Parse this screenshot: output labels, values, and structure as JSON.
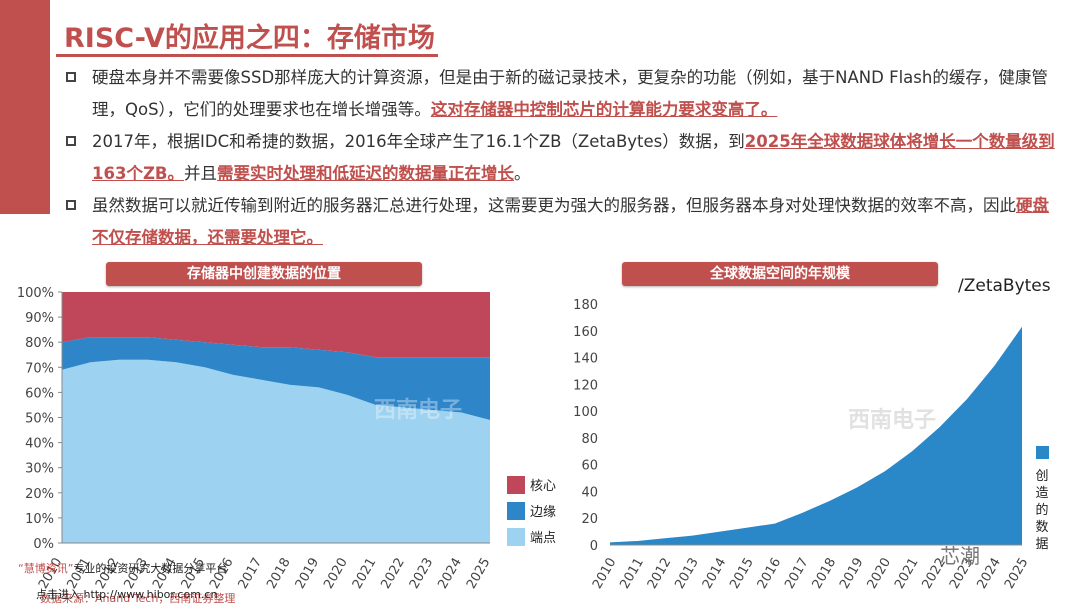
{
  "slide": {
    "title": "RISC-V的应用之四：存储市场",
    "bullets": [
      {
        "parts": [
          {
            "t": "硬盘本身并不需要像SSD那样庞大的计算资源，但是由于新的磁记录技术，更复杂的功能（例如，基于NAND Flash的缓存，健康管理，QoS），它们的处理要求也在增长增强等。",
            "hl": false
          },
          {
            "t": "这对存储器中控制芯片的计算能力要求变高了。",
            "hl": true
          }
        ]
      },
      {
        "parts": [
          {
            "t": "2017年，根据IDC和希捷的数据，2016年全球产生了16.1个ZB（ZetaBytes）数据，到",
            "hl": false
          },
          {
            "t": "2025年全球数据球体将增长一个数量级到163个ZB。",
            "hl": true
          },
          {
            "t": "并且",
            "hl": false
          },
          {
            "t": "需要实时处理和低延迟的数据量正在增长",
            "hl": true
          },
          {
            "t": "。",
            "hl": false
          }
        ]
      },
      {
        "parts": [
          {
            "t": "虽然数据可以就近传输到附近的服务器汇总进行处理，这需要更为强大的服务器，但服务器本身对处理快数据的效率不高，因此",
            "hl": false
          },
          {
            "t": "硬盘不仅存储数据，还需要处理它。",
            "hl": true
          }
        ]
      }
    ]
  },
  "colors": {
    "accent": "#c0504d",
    "core": "#c0475a",
    "edge": "#2e86c9",
    "endpoint": "#9dd3f0",
    "area": "#2a87c8"
  },
  "watermark": "西南电子",
  "footer": {
    "quote_prefix": "“慧博资讯”",
    "quote_text": "专业的投资研究大数据分享平台",
    "click": "点击进入",
    "url": "http://www.hibor.com.cn",
    "source": "数据来源：Anand Tech，西南证券整理"
  },
  "wechat_label": "芯潮",
  "chart_data": [
    {
      "type": "area",
      "title": "存储器中创建数据的位置",
      "stacked": true,
      "x": [
        "2010",
        "2011",
        "2012",
        "2013",
        "2014",
        "2015",
        "2016",
        "2017",
        "2018",
        "2019",
        "2020",
        "2021",
        "2022",
        "2023",
        "2024",
        "2025"
      ],
      "series": [
        {
          "name": "端点",
          "values": [
            69,
            72,
            73,
            73,
            72,
            70,
            67,
            65,
            63,
            62,
            59,
            55,
            54,
            53,
            52,
            49
          ]
        },
        {
          "name": "边缘",
          "values": [
            11,
            10,
            9,
            9,
            9,
            10,
            12,
            13,
            15,
            15,
            17,
            19,
            20,
            21,
            22,
            25
          ]
        },
        {
          "name": "核心",
          "values": [
            20,
            18,
            18,
            18,
            19,
            20,
            21,
            22,
            22,
            23,
            24,
            26,
            26,
            26,
            26,
            26
          ]
        }
      ],
      "ylim": [
        0,
        100
      ],
      "yticks": [
        "0%",
        "10%",
        "20%",
        "30%",
        "40%",
        "50%",
        "60%",
        "70%",
        "80%",
        "90%",
        "100%"
      ],
      "legend": "right",
      "grid": false
    },
    {
      "type": "area",
      "title": "全球数据空间的年规模",
      "unit": "/ZetaBytes",
      "x": [
        "2010",
        "2011",
        "2012",
        "2013",
        "2014",
        "2015",
        "2016",
        "2017",
        "2018",
        "2019",
        "2020",
        "2021",
        "2022",
        "2023",
        "2024",
        "2025"
      ],
      "series": [
        {
          "name": "创造的数据",
          "values": [
            2,
            3,
            5,
            7,
            10,
            13,
            16,
            24,
            33,
            43,
            55,
            70,
            88,
            109,
            134,
            163
          ]
        }
      ],
      "ylim": [
        0,
        180
      ],
      "yticks": [
        "0",
        "20",
        "40",
        "60",
        "80",
        "100",
        "120",
        "140",
        "160",
        "180"
      ],
      "legend": "right",
      "grid": false
    }
  ]
}
